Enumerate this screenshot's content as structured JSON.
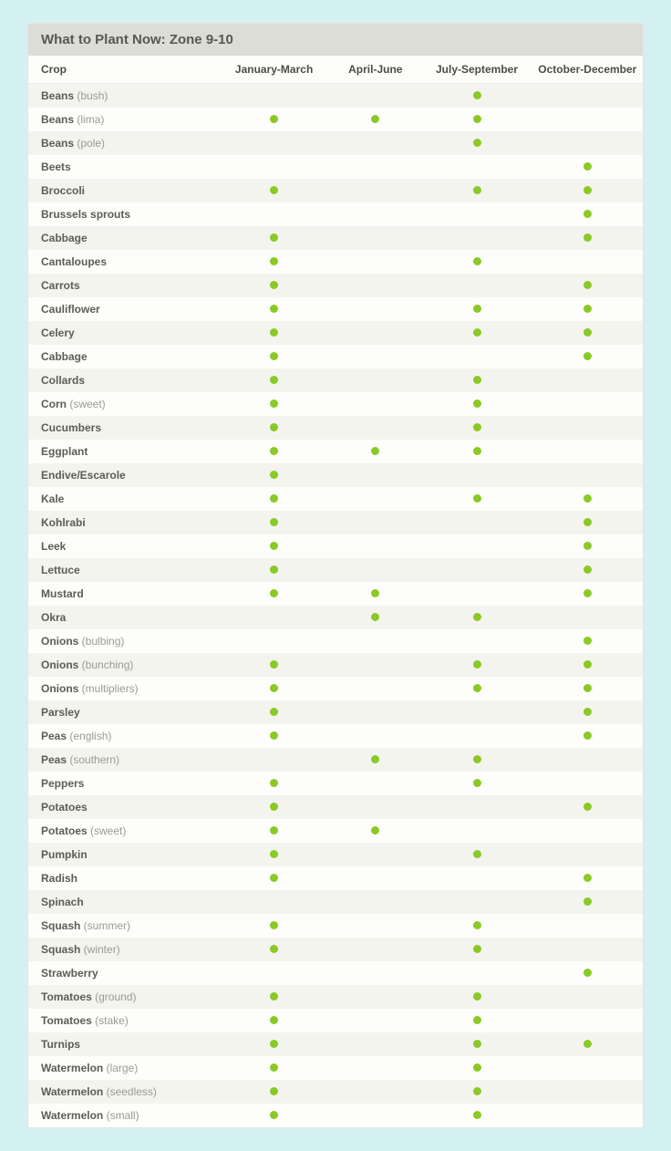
{
  "title": "What to Plant Now: Zone 9-10",
  "dot_color": "#8ac926",
  "columns": [
    "Crop",
    "January-March",
    "April-June",
    "July-September",
    "October-December"
  ],
  "col_widths": [
    "31%",
    "18%",
    "15%",
    "18%",
    "18%"
  ],
  "rows": [
    {
      "name": "Beans",
      "variety": "(bush)",
      "periods": [
        0,
        0,
        1,
        0
      ]
    },
    {
      "name": "Beans",
      "variety": "(lima)",
      "periods": [
        1,
        1,
        1,
        0
      ]
    },
    {
      "name": "Beans",
      "variety": "(pole)",
      "periods": [
        0,
        0,
        1,
        0
      ]
    },
    {
      "name": "Beets",
      "variety": "",
      "periods": [
        0,
        0,
        0,
        1
      ]
    },
    {
      "name": "Broccoli",
      "variety": "",
      "periods": [
        1,
        0,
        1,
        1
      ]
    },
    {
      "name": "Brussels sprouts",
      "variety": "",
      "periods": [
        0,
        0,
        0,
        1
      ]
    },
    {
      "name": "Cabbage",
      "variety": "",
      "periods": [
        1,
        0,
        0,
        1
      ]
    },
    {
      "name": "Cantaloupes",
      "variety": "",
      "periods": [
        1,
        0,
        1,
        0
      ]
    },
    {
      "name": "Carrots",
      "variety": "",
      "periods": [
        1,
        0,
        0,
        1
      ]
    },
    {
      "name": "Cauliflower",
      "variety": "",
      "periods": [
        1,
        0,
        1,
        1
      ]
    },
    {
      "name": "Celery",
      "variety": "",
      "periods": [
        1,
        0,
        1,
        1
      ]
    },
    {
      "name": "Cabbage",
      "variety": "",
      "periods": [
        1,
        0,
        0,
        1
      ]
    },
    {
      "name": "Collards",
      "variety": "",
      "periods": [
        1,
        0,
        1,
        0
      ]
    },
    {
      "name": "Corn",
      "variety": "(sweet)",
      "periods": [
        1,
        0,
        1,
        0
      ]
    },
    {
      "name": "Cucumbers",
      "variety": "",
      "periods": [
        1,
        0,
        1,
        0
      ]
    },
    {
      "name": "Eggplant",
      "variety": "",
      "periods": [
        1,
        1,
        1,
        0
      ]
    },
    {
      "name": "Endive/Escarole",
      "variety": "",
      "periods": [
        1,
        0,
        0,
        0
      ]
    },
    {
      "name": "Kale",
      "variety": "",
      "periods": [
        1,
        0,
        1,
        1
      ]
    },
    {
      "name": "Kohlrabi",
      "variety": "",
      "periods": [
        1,
        0,
        0,
        1
      ]
    },
    {
      "name": "Leek",
      "variety": "",
      "periods": [
        1,
        0,
        0,
        1
      ]
    },
    {
      "name": "Lettuce",
      "variety": "",
      "periods": [
        1,
        0,
        0,
        1
      ]
    },
    {
      "name": "Mustard",
      "variety": "",
      "periods": [
        1,
        1,
        0,
        1
      ]
    },
    {
      "name": "Okra",
      "variety": "",
      "periods": [
        0,
        1,
        1,
        0
      ]
    },
    {
      "name": "Onions",
      "variety": "(bulbing)",
      "periods": [
        0,
        0,
        0,
        1
      ]
    },
    {
      "name": "Onions",
      "variety": "(bunching)",
      "periods": [
        1,
        0,
        1,
        1
      ]
    },
    {
      "name": "Onions",
      "variety": "(multipliers)",
      "periods": [
        1,
        0,
        1,
        1
      ]
    },
    {
      "name": "Parsley",
      "variety": "",
      "periods": [
        1,
        0,
        0,
        1
      ]
    },
    {
      "name": "Peas",
      "variety": "(english)",
      "periods": [
        1,
        0,
        0,
        1
      ]
    },
    {
      "name": "Peas",
      "variety": "(southern)",
      "periods": [
        0,
        1,
        1,
        0
      ]
    },
    {
      "name": "Peppers",
      "variety": "",
      "periods": [
        1,
        0,
        1,
        0
      ]
    },
    {
      "name": "Potatoes",
      "variety": "",
      "periods": [
        1,
        0,
        0,
        1
      ]
    },
    {
      "name": "Potatoes",
      "variety": "(sweet)",
      "periods": [
        1,
        1,
        0,
        0
      ]
    },
    {
      "name": "Pumpkin",
      "variety": "",
      "periods": [
        1,
        0,
        1,
        0
      ]
    },
    {
      "name": "Radish",
      "variety": "",
      "periods": [
        1,
        0,
        0,
        1
      ]
    },
    {
      "name": "Spinach",
      "variety": "",
      "periods": [
        0,
        0,
        0,
        1
      ]
    },
    {
      "name": "Squash",
      "variety": "(summer)",
      "periods": [
        1,
        0,
        1,
        0
      ]
    },
    {
      "name": "Squash",
      "variety": "(winter)",
      "periods": [
        1,
        0,
        1,
        0
      ]
    },
    {
      "name": "Strawberry",
      "variety": "",
      "periods": [
        0,
        0,
        0,
        1
      ]
    },
    {
      "name": "Tomatoes",
      "variety": "(ground)",
      "periods": [
        1,
        0,
        1,
        0
      ]
    },
    {
      "name": "Tomatoes",
      "variety": "(stake)",
      "periods": [
        1,
        0,
        1,
        0
      ]
    },
    {
      "name": "Turnips",
      "variety": "",
      "periods": [
        1,
        0,
        1,
        1
      ]
    },
    {
      "name": "Watermelon",
      "variety": "(large)",
      "periods": [
        1,
        0,
        1,
        0
      ]
    },
    {
      "name": "Watermelon",
      "variety": "(seedless)",
      "periods": [
        1,
        0,
        1,
        0
      ]
    },
    {
      "name": "Watermelon",
      "variety": "(small)",
      "periods": [
        1,
        0,
        1,
        0
      ]
    }
  ]
}
